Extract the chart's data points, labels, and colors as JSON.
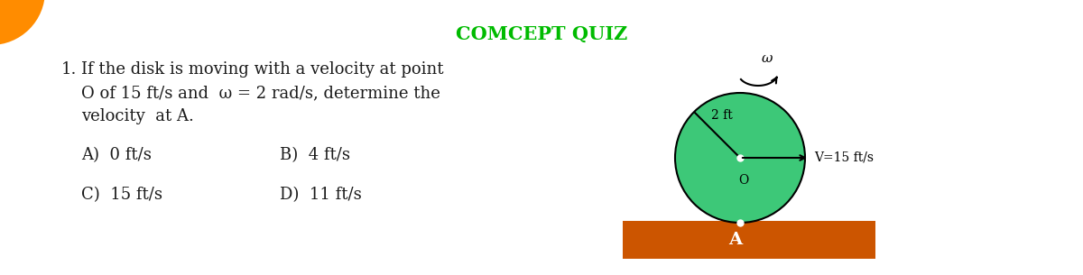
{
  "title": "COMCEPT QUIZ",
  "title_color": "#00BB00",
  "title_fontsize": 15,
  "bg_color": "#FFFFFF",
  "question_number": "1.",
  "question_text_line1": "If the disk is moving with a velocity at point",
  "question_text_line2": "O of 15 ft/s and  ω = 2 rad/s, determine the",
  "question_text_line3": "velocity  at A.",
  "answer_row1_col1": "A)  0 ft/s",
  "answer_row1_col2": "B)  4 ft/s",
  "answer_row2_col1": "C)  15 ft/s",
  "answer_row2_col2": "D)  11 ft/s",
  "text_color": "#1a1a1a",
  "answer_fontsize": 13,
  "question_fontsize": 13,
  "disk_color": "#3DC878",
  "disk_edge_color": "#000000",
  "ground_color": "#CC5500",
  "omega_label": "ω",
  "radius_label": "2 ft",
  "center_label": "O",
  "point_A_label": "A",
  "velocity_label": "V=15 ft/s",
  "orange_logo_color": "#FF8C00",
  "logo_color2": "#FF6600"
}
